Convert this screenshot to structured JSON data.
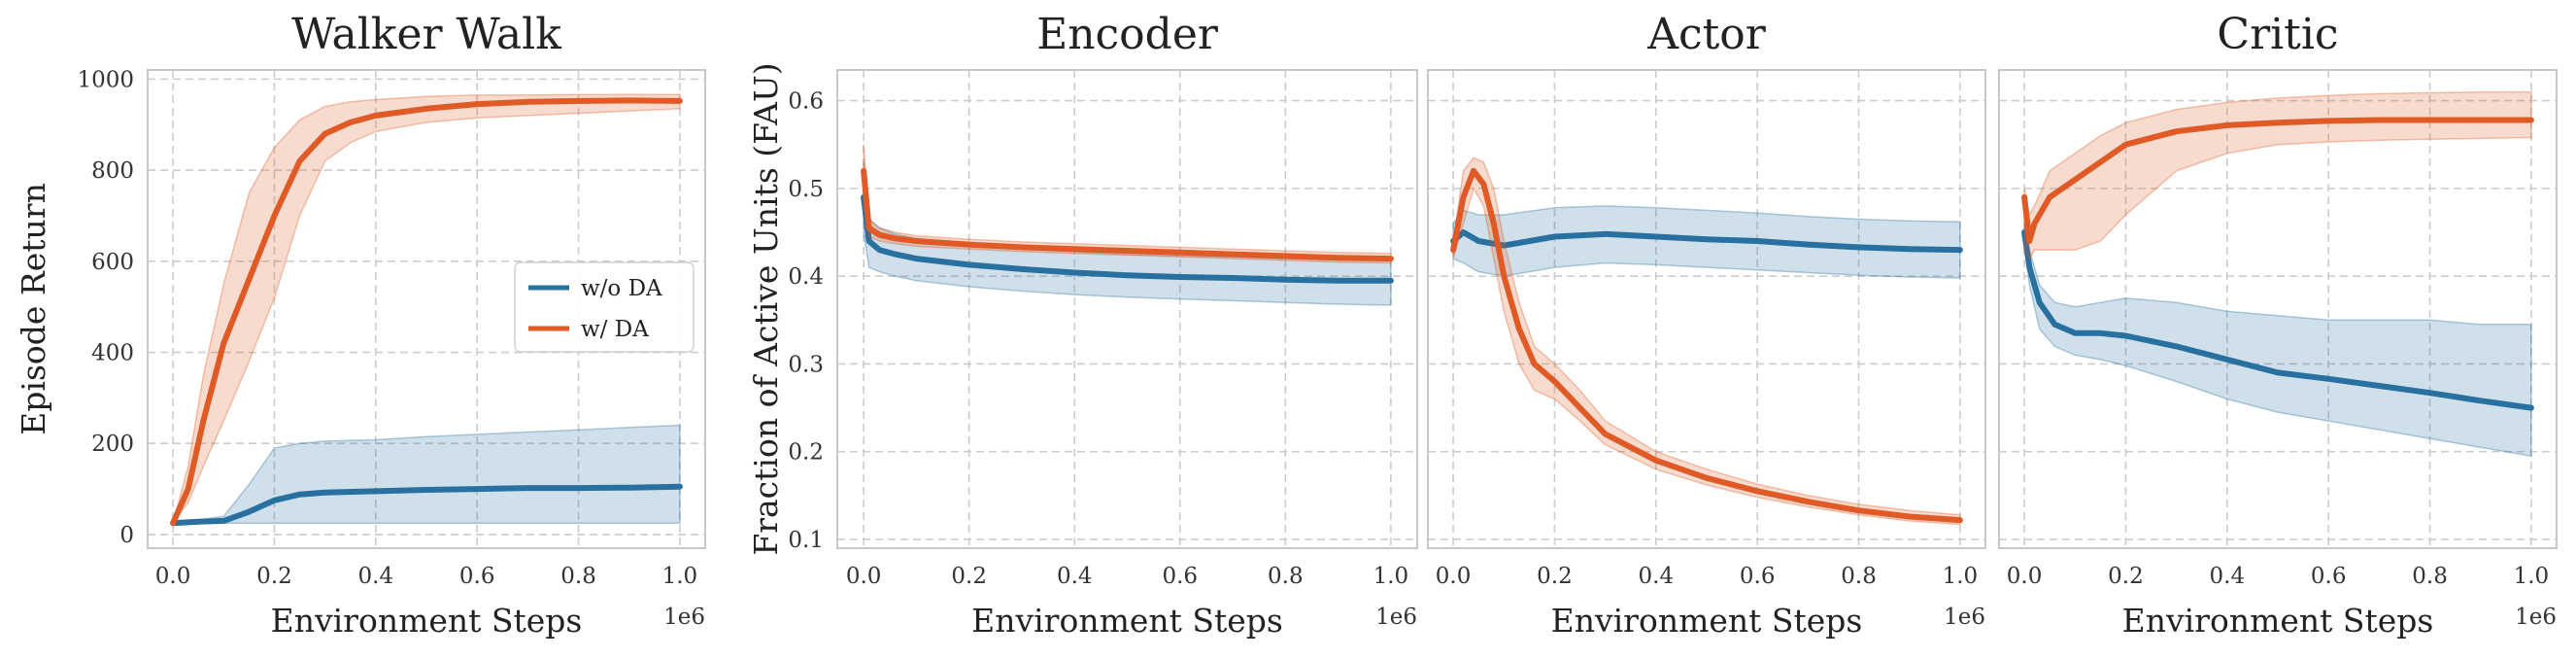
{
  "colors": {
    "without_da": "#2870a0",
    "with_da": "#e05a26"
  },
  "legend": {
    "items": [
      "w/o DA",
      "w/ DA"
    ],
    "placement": "center-right",
    "panel": "Walker Walk"
  },
  "chart_data": [
    {
      "type": "line",
      "title": "Walker Walk",
      "xlabel": "Environment Steps",
      "ylabel": "Episode Return",
      "x_offset_label": "1e6",
      "xlim": [
        -0.05,
        1.05
      ],
      "ylim": [
        -30,
        1020
      ],
      "xticks": [
        0.0,
        0.2,
        0.4,
        0.6,
        0.8,
        1.0
      ],
      "xtick_labels": [
        "0.0",
        "0.2",
        "0.4",
        "0.6",
        "0.8",
        "1.0"
      ],
      "yticks": [
        0,
        200,
        400,
        600,
        800,
        1000
      ],
      "ytick_labels": [
        "0",
        "200",
        "400",
        "600",
        "800",
        "1000"
      ],
      "grid": true,
      "series": [
        {
          "name": "w/o DA",
          "x": [
            0.0,
            0.05,
            0.1,
            0.15,
            0.2,
            0.25,
            0.3,
            0.4,
            0.5,
            0.6,
            0.7,
            0.8,
            0.9,
            1.0
          ],
          "y": [
            25,
            28,
            30,
            50,
            75,
            88,
            92,
            95,
            98,
            100,
            102,
            102,
            103,
            105
          ],
          "lower": [
            25,
            25,
            25,
            25,
            25,
            25,
            25,
            25,
            25,
            25,
            25,
            25,
            25,
            25
          ],
          "upper": [
            25,
            32,
            40,
            110,
            190,
            200,
            205,
            208,
            215,
            220,
            225,
            230,
            235,
            240
          ]
        },
        {
          "name": "w/ DA",
          "x": [
            0.0,
            0.03,
            0.06,
            0.1,
            0.15,
            0.2,
            0.25,
            0.3,
            0.35,
            0.4,
            0.5,
            0.6,
            0.7,
            0.8,
            0.9,
            1.0
          ],
          "y": [
            25,
            100,
            250,
            420,
            560,
            700,
            820,
            880,
            905,
            920,
            935,
            945,
            950,
            952,
            953,
            952
          ],
          "lower": [
            25,
            70,
            150,
            250,
            380,
            520,
            700,
            820,
            860,
            885,
            905,
            915,
            920,
            925,
            930,
            935
          ],
          "upper": [
            25,
            150,
            350,
            550,
            750,
            850,
            910,
            940,
            950,
            955,
            962,
            965,
            965,
            966,
            966,
            966
          ]
        }
      ]
    },
    {
      "type": "line",
      "title": "Encoder",
      "xlabel": "Environment Steps",
      "ylabel": "Fraction of Active Units (FAU)",
      "x_offset_label": "1e6",
      "xlim": [
        -0.05,
        1.05
      ],
      "ylim": [
        0.09,
        0.635
      ],
      "xticks": [
        0.0,
        0.2,
        0.4,
        0.6,
        0.8,
        1.0
      ],
      "xtick_labels": [
        "0.0",
        "0.2",
        "0.4",
        "0.6",
        "0.8",
        "1.0"
      ],
      "yticks": [
        0.1,
        0.2,
        0.3,
        0.4,
        0.5,
        0.6
      ],
      "ytick_labels": [
        "0.1",
        "0.2",
        "0.3",
        "0.4",
        "0.5",
        "0.6"
      ],
      "grid": true,
      "series": [
        {
          "name": "w/o DA",
          "x": [
            0.0,
            0.01,
            0.03,
            0.06,
            0.1,
            0.2,
            0.3,
            0.4,
            0.5,
            0.6,
            0.7,
            0.8,
            0.9,
            1.0
          ],
          "y": [
            0.49,
            0.44,
            0.43,
            0.425,
            0.42,
            0.413,
            0.408,
            0.404,
            0.401,
            0.399,
            0.398,
            0.396,
            0.395,
            0.395
          ],
          "lower": [
            0.45,
            0.41,
            0.405,
            0.4,
            0.395,
            0.388,
            0.383,
            0.379,
            0.376,
            0.374,
            0.372,
            0.37,
            0.368,
            0.367
          ],
          "upper": [
            0.53,
            0.465,
            0.455,
            0.448,
            0.443,
            0.437,
            0.432,
            0.428,
            0.425,
            0.423,
            0.422,
            0.42,
            0.419,
            0.418
          ]
        },
        {
          "name": "w/ DA",
          "x": [
            0.0,
            0.01,
            0.03,
            0.06,
            0.1,
            0.2,
            0.3,
            0.4,
            0.5,
            0.6,
            0.7,
            0.8,
            0.9,
            1.0
          ],
          "y": [
            0.52,
            0.455,
            0.447,
            0.443,
            0.44,
            0.436,
            0.433,
            0.431,
            0.429,
            0.427,
            0.425,
            0.423,
            0.421,
            0.42
          ],
          "lower": [
            0.48,
            0.445,
            0.44,
            0.437,
            0.434,
            0.431,
            0.428,
            0.426,
            0.424,
            0.422,
            0.42,
            0.418,
            0.416,
            0.415
          ],
          "upper": [
            0.55,
            0.465,
            0.455,
            0.45,
            0.446,
            0.442,
            0.439,
            0.437,
            0.435,
            0.433,
            0.431,
            0.429,
            0.427,
            0.426
          ]
        }
      ]
    },
    {
      "type": "line",
      "title": "Actor",
      "xlabel": "Environment Steps",
      "ylabel": "",
      "x_offset_label": "1e6",
      "xlim": [
        -0.05,
        1.05
      ],
      "ylim": [
        0.09,
        0.635
      ],
      "xticks": [
        0.0,
        0.2,
        0.4,
        0.6,
        0.8,
        1.0
      ],
      "xtick_labels": [
        "0.0",
        "0.2",
        "0.4",
        "0.6",
        "0.8",
        "1.0"
      ],
      "yticks": [
        0.1,
        0.2,
        0.3,
        0.4,
        0.5,
        0.6
      ],
      "ytick_labels": [],
      "grid": true,
      "series": [
        {
          "name": "w/o DA",
          "x": [
            0.0,
            0.02,
            0.05,
            0.1,
            0.2,
            0.3,
            0.4,
            0.5,
            0.6,
            0.7,
            0.8,
            0.9,
            1.0
          ],
          "y": [
            0.44,
            0.45,
            0.44,
            0.435,
            0.445,
            0.448,
            0.445,
            0.442,
            0.44,
            0.436,
            0.433,
            0.431,
            0.43
          ],
          "lower": [
            0.42,
            0.415,
            0.405,
            0.4,
            0.41,
            0.415,
            0.413,
            0.41,
            0.407,
            0.404,
            0.401,
            0.399,
            0.398
          ],
          "upper": [
            0.46,
            0.475,
            0.47,
            0.47,
            0.478,
            0.48,
            0.478,
            0.475,
            0.472,
            0.468,
            0.465,
            0.463,
            0.462
          ]
        },
        {
          "name": "w/ DA",
          "x": [
            0.0,
            0.02,
            0.04,
            0.06,
            0.08,
            0.1,
            0.13,
            0.16,
            0.2,
            0.25,
            0.3,
            0.4,
            0.5,
            0.6,
            0.7,
            0.8,
            0.9,
            1.0
          ],
          "y": [
            0.43,
            0.49,
            0.52,
            0.505,
            0.46,
            0.4,
            0.34,
            0.3,
            0.28,
            0.25,
            0.22,
            0.19,
            0.17,
            0.155,
            0.143,
            0.133,
            0.126,
            0.122
          ],
          "lower": [
            0.42,
            0.46,
            0.5,
            0.48,
            0.42,
            0.36,
            0.3,
            0.27,
            0.26,
            0.235,
            0.208,
            0.18,
            0.162,
            0.148,
            0.137,
            0.128,
            0.121,
            0.117
          ],
          "upper": [
            0.44,
            0.52,
            0.535,
            0.53,
            0.5,
            0.44,
            0.37,
            0.32,
            0.3,
            0.27,
            0.235,
            0.2,
            0.18,
            0.163,
            0.15,
            0.14,
            0.133,
            0.128
          ]
        }
      ]
    },
    {
      "type": "line",
      "title": "Critic",
      "xlabel": "Environment Steps",
      "ylabel": "",
      "x_offset_label": "1e6",
      "xlim": [
        -0.05,
        1.05
      ],
      "ylim": [
        0.09,
        0.635
      ],
      "xticks": [
        0.0,
        0.2,
        0.4,
        0.6,
        0.8,
        1.0
      ],
      "xtick_labels": [
        "0.0",
        "0.2",
        "0.4",
        "0.6",
        "0.8",
        "1.0"
      ],
      "yticks": [
        0.1,
        0.2,
        0.3,
        0.4,
        0.5,
        0.6
      ],
      "ytick_labels": [],
      "grid": true,
      "series": [
        {
          "name": "w/o DA",
          "x": [
            0.0,
            0.01,
            0.03,
            0.06,
            0.1,
            0.15,
            0.2,
            0.3,
            0.4,
            0.5,
            0.6,
            0.7,
            0.8,
            0.9,
            1.0
          ],
          "y": [
            0.45,
            0.41,
            0.37,
            0.345,
            0.335,
            0.335,
            0.332,
            0.32,
            0.305,
            0.29,
            0.283,
            0.275,
            0.267,
            0.258,
            0.25
          ],
          "lower": [
            0.44,
            0.39,
            0.34,
            0.32,
            0.31,
            0.305,
            0.298,
            0.28,
            0.26,
            0.245,
            0.235,
            0.225,
            0.215,
            0.205,
            0.195
          ],
          "upper": [
            0.46,
            0.43,
            0.39,
            0.37,
            0.365,
            0.37,
            0.375,
            0.37,
            0.36,
            0.355,
            0.35,
            0.35,
            0.35,
            0.345,
            0.345
          ]
        },
        {
          "name": "w/ DA",
          "x": [
            0.0,
            0.01,
            0.02,
            0.05,
            0.1,
            0.15,
            0.2,
            0.3,
            0.4,
            0.5,
            0.6,
            0.7,
            0.8,
            0.9,
            1.0
          ],
          "y": [
            0.49,
            0.44,
            0.46,
            0.49,
            0.51,
            0.53,
            0.55,
            0.565,
            0.572,
            0.575,
            0.577,
            0.578,
            0.578,
            0.578,
            0.578
          ],
          "lower": [
            0.43,
            0.42,
            0.43,
            0.43,
            0.43,
            0.44,
            0.47,
            0.52,
            0.54,
            0.55,
            0.553,
            0.555,
            0.556,
            0.557,
            0.558
          ],
          "upper": [
            0.5,
            0.47,
            0.48,
            0.52,
            0.54,
            0.56,
            0.575,
            0.59,
            0.598,
            0.603,
            0.606,
            0.608,
            0.609,
            0.61,
            0.61
          ]
        }
      ]
    }
  ]
}
